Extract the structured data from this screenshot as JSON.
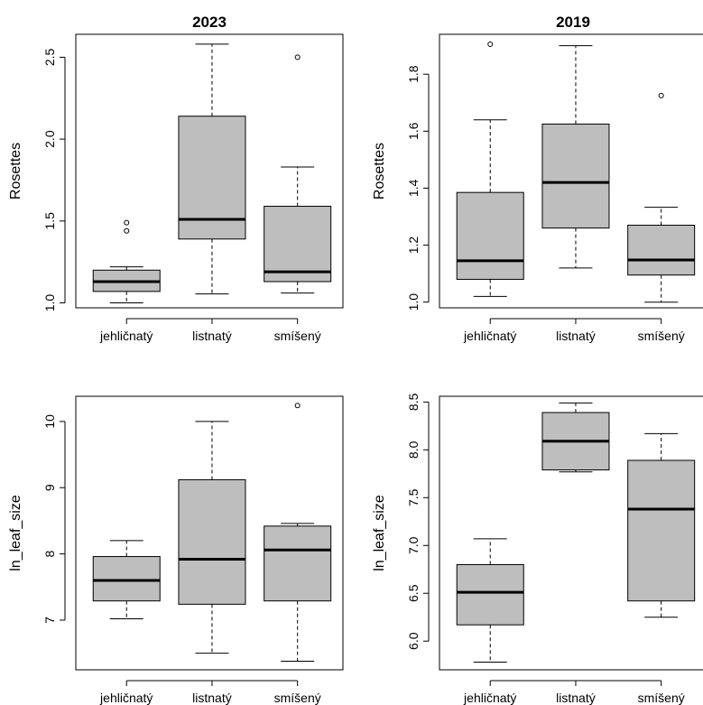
{
  "chart_data": [
    {
      "type": "boxplot",
      "title": "2023",
      "ylabel": "Rosettes",
      "xlabel": "",
      "categories": [
        "jehličnatý",
        "listnatý",
        "smíšený"
      ],
      "yticks": [
        "1.0",
        "1.5",
        "2.0",
        "2.5"
      ],
      "ylim": [
        0.97,
        2.64
      ],
      "boxes": [
        {
          "whisker_low": 1.0,
          "q1": 1.07,
          "median": 1.13,
          "q3": 1.2,
          "whisker_high": 1.22,
          "outliers": [
            1.44,
            1.49
          ]
        },
        {
          "whisker_low": 1.055,
          "q1": 1.39,
          "median": 1.51,
          "q3": 2.14,
          "whisker_high": 2.58,
          "outliers": []
        },
        {
          "whisker_low": 1.06,
          "q1": 1.13,
          "median": 1.19,
          "q3": 1.59,
          "whisker_high": 1.83,
          "outliers": [
            2.5
          ]
        }
      ]
    },
    {
      "type": "boxplot",
      "title": "2019",
      "ylabel": "Rosettes",
      "xlabel": "",
      "categories": [
        "jehličnatý",
        "listnatý",
        "smíšený"
      ],
      "yticks": [
        "1.0",
        "1.2",
        "1.4",
        "1.6",
        "1.8"
      ],
      "ylim": [
        0.98,
        1.94
      ],
      "boxes": [
        {
          "whisker_low": 1.02,
          "q1": 1.08,
          "median": 1.145,
          "q3": 1.385,
          "whisker_high": 1.64,
          "outliers": [
            1.905
          ]
        },
        {
          "whisker_low": 1.12,
          "q1": 1.26,
          "median": 1.42,
          "q3": 1.625,
          "whisker_high": 1.9,
          "outliers": []
        },
        {
          "whisker_low": 1.0,
          "q1": 1.095,
          "median": 1.148,
          "q3": 1.27,
          "whisker_high": 1.333,
          "outliers": [
            1.725
          ]
        }
      ]
    },
    {
      "type": "boxplot",
      "title": "",
      "ylabel": "ln_leaf_size",
      "xlabel": "",
      "categories": [
        "jehličnatý",
        "listnatý",
        "smíšený"
      ],
      "yticks": [
        "7",
        "8",
        "9",
        "10"
      ],
      "ylim": [
        6.25,
        10.38
      ],
      "boxes": [
        {
          "whisker_low": 7.02,
          "q1": 7.29,
          "median": 7.6,
          "q3": 7.96,
          "whisker_high": 8.2,
          "outliers": []
        },
        {
          "whisker_low": 6.5,
          "q1": 7.24,
          "median": 7.92,
          "q3": 9.12,
          "whisker_high": 10.0,
          "outliers": []
        },
        {
          "whisker_low": 6.38,
          "q1": 7.29,
          "median": 8.06,
          "q3": 8.42,
          "whisker_high": 8.46,
          "outliers": [
            10.24
          ]
        }
      ]
    },
    {
      "type": "boxplot",
      "title": "",
      "ylabel": "ln_leaf_size",
      "xlabel": "",
      "categories": [
        "jehličnatý",
        "listnatý",
        "smíšený"
      ],
      "yticks": [
        "6.0",
        "6.5",
        "7.0",
        "7.5",
        "8.0",
        "8.5"
      ],
      "ylim": [
        5.7,
        8.56
      ],
      "boxes": [
        {
          "whisker_low": 5.78,
          "q1": 6.17,
          "median": 6.51,
          "q3": 6.8,
          "whisker_high": 7.07,
          "outliers": []
        },
        {
          "whisker_low": 7.77,
          "q1": 7.79,
          "median": 8.09,
          "q3": 8.39,
          "whisker_high": 8.49,
          "outliers": []
        },
        {
          "whisker_low": 6.25,
          "q1": 6.42,
          "median": 7.38,
          "q3": 7.89,
          "whisker_high": 8.17,
          "outliers": []
        }
      ]
    }
  ],
  "colors": {
    "box_fill": "#bebebe",
    "stroke": "#000000",
    "median": "#000000"
  }
}
